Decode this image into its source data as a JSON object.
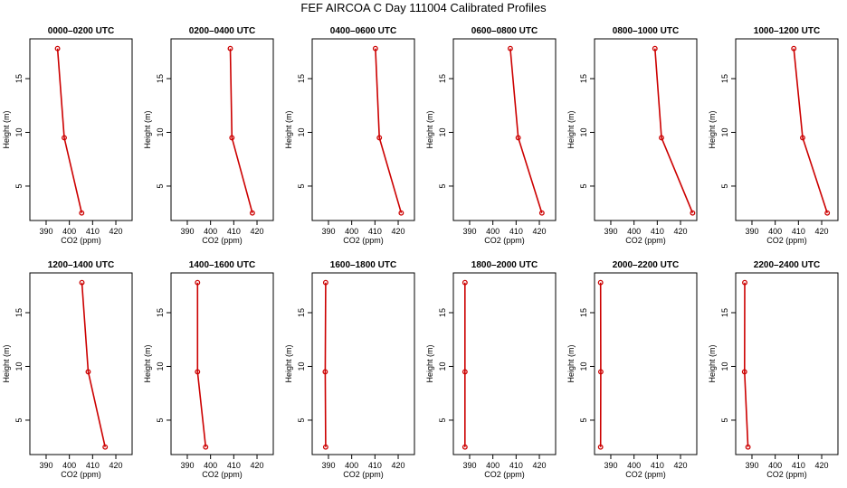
{
  "title": "FEF AIRCOA C  Day 111004  Calibrated Profiles",
  "colors": {
    "line": "#cc0000",
    "axis": "#000000",
    "background": "#ffffff"
  },
  "chart_data": [
    {
      "type": "line",
      "title": "0000–0200 UTC",
      "xlabel": "CO2 (ppm)",
      "ylabel": "Height (m)",
      "xlim": [
        383,
        427
      ],
      "ylim": [
        1.8,
        18.7
      ],
      "xticks": [
        390,
        400,
        410,
        420
      ],
      "xtick_labels": [
        "390",
        "400",
        "410",
        "420"
      ],
      "yticks": [
        5,
        10,
        15
      ],
      "ytick_labels": [
        "5",
        "10",
        "15"
      ],
      "x": [
        394.9,
        397.8,
        405.3
      ],
      "y": [
        17.8,
        9.5,
        2.5
      ]
    },
    {
      "type": "line",
      "title": "0200–0400 UTC",
      "xlabel": "CO2 (ppm)",
      "ylabel": "Height (m)",
      "xlim": [
        383,
        427
      ],
      "ylim": [
        1.8,
        18.7
      ],
      "xticks": [
        390,
        400,
        410,
        420
      ],
      "xtick_labels": [
        "390",
        "400",
        "410",
        "420"
      ],
      "yticks": [
        5,
        10,
        15
      ],
      "ytick_labels": [
        "5",
        "10",
        "15"
      ],
      "x": [
        408.5,
        409.2,
        418.0
      ],
      "y": [
        17.8,
        9.5,
        2.5
      ]
    },
    {
      "type": "line",
      "title": "0400–0600 UTC",
      "xlabel": "CO2 (ppm)",
      "ylabel": "Height (m)",
      "xlim": [
        383,
        427
      ],
      "ylim": [
        1.8,
        18.7
      ],
      "xticks": [
        390,
        400,
        410,
        420
      ],
      "xtick_labels": [
        "390",
        "400",
        "410",
        "420"
      ],
      "yticks": [
        5,
        10,
        15
      ],
      "ytick_labels": [
        "5",
        "10",
        "15"
      ],
      "x": [
        410.2,
        411.9,
        421.3
      ],
      "y": [
        17.8,
        9.5,
        2.5
      ]
    },
    {
      "type": "line",
      "title": "0600–0800 UTC",
      "xlabel": "CO2 (ppm)",
      "ylabel": "Height (m)",
      "xlim": [
        383,
        427
      ],
      "ylim": [
        1.8,
        18.7
      ],
      "xticks": [
        390,
        400,
        410,
        420
      ],
      "xtick_labels": [
        "390",
        "400",
        "410",
        "420"
      ],
      "yticks": [
        5,
        10,
        15
      ],
      "ytick_labels": [
        "5",
        "10",
        "15"
      ],
      "x": [
        407.5,
        410.9,
        421.1
      ],
      "y": [
        17.8,
        9.5,
        2.5
      ]
    },
    {
      "type": "line",
      "title": "0800–1000 UTC",
      "xlabel": "CO2 (ppm)",
      "ylabel": "Height (m)",
      "xlim": [
        383,
        427
      ],
      "ylim": [
        1.8,
        18.7
      ],
      "xticks": [
        390,
        400,
        410,
        420
      ],
      "xtick_labels": [
        "390",
        "400",
        "410",
        "420"
      ],
      "yticks": [
        5,
        10,
        15
      ],
      "ytick_labels": [
        "5",
        "10",
        "15"
      ],
      "x": [
        409.0,
        411.8,
        425.2
      ],
      "y": [
        17.8,
        9.5,
        2.5
      ]
    },
    {
      "type": "line",
      "title": "1000–1200 UTC",
      "xlabel": "CO2 (ppm)",
      "ylabel": "Height (m)",
      "xlim": [
        383,
        427
      ],
      "ylim": [
        1.8,
        18.7
      ],
      "xticks": [
        390,
        400,
        410,
        420
      ],
      "xtick_labels": [
        "390",
        "400",
        "410",
        "420"
      ],
      "yticks": [
        5,
        10,
        15
      ],
      "ytick_labels": [
        "5",
        "10",
        "15"
      ],
      "x": [
        408.0,
        411.8,
        422.4
      ],
      "y": [
        17.8,
        9.5,
        2.5
      ]
    },
    {
      "type": "line",
      "title": "1200–1400 UTC",
      "xlabel": "CO2 (ppm)",
      "ylabel": "Height (m)",
      "xlim": [
        383,
        427
      ],
      "ylim": [
        1.8,
        18.7
      ],
      "xticks": [
        390,
        400,
        410,
        420
      ],
      "xtick_labels": [
        "390",
        "400",
        "410",
        "420"
      ],
      "yticks": [
        5,
        10,
        15
      ],
      "ytick_labels": [
        "5",
        "10",
        "15"
      ],
      "x": [
        405.4,
        408.1,
        415.4
      ],
      "y": [
        17.8,
        9.5,
        2.5
      ]
    },
    {
      "type": "line",
      "title": "1400–1600 UTC",
      "xlabel": "CO2 (ppm)",
      "ylabel": "Height (m)",
      "xlim": [
        383,
        427
      ],
      "ylim": [
        1.8,
        18.7
      ],
      "xticks": [
        390,
        400,
        410,
        420
      ],
      "xtick_labels": [
        "390",
        "400",
        "410",
        "420"
      ],
      "yticks": [
        5,
        10,
        15
      ],
      "ytick_labels": [
        "5",
        "10",
        "15"
      ],
      "x": [
        394.4,
        394.4,
        397.9
      ],
      "y": [
        17.8,
        9.5,
        2.5
      ]
    },
    {
      "type": "line",
      "title": "1600–1800 UTC",
      "xlabel": "CO2 (ppm)",
      "ylabel": "Height (m)",
      "xlim": [
        383,
        427
      ],
      "ylim": [
        1.8,
        18.7
      ],
      "xticks": [
        390,
        400,
        410,
        420
      ],
      "xtick_labels": [
        "390",
        "400",
        "410",
        "420"
      ],
      "yticks": [
        5,
        10,
        15
      ],
      "ytick_labels": [
        "5",
        "10",
        "15"
      ],
      "x": [
        388.8,
        388.6,
        388.8
      ],
      "y": [
        17.8,
        9.5,
        2.5
      ]
    },
    {
      "type": "line",
      "title": "1800–2000 UTC",
      "xlabel": "CO2 (ppm)",
      "ylabel": "Height (m)",
      "xlim": [
        383,
        427
      ],
      "ylim": [
        1.8,
        18.7
      ],
      "xticks": [
        390,
        400,
        410,
        420
      ],
      "xtick_labels": [
        "390",
        "400",
        "410",
        "420"
      ],
      "yticks": [
        5,
        10,
        15
      ],
      "ytick_labels": [
        "5",
        "10",
        "15"
      ],
      "x": [
        388.0,
        388.0,
        388.0
      ],
      "y": [
        17.8,
        9.5,
        2.5
      ]
    },
    {
      "type": "line",
      "title": "2000–2200 UTC",
      "xlabel": "CO2 (ppm)",
      "ylabel": "Height (m)",
      "xlim": [
        383,
        427
      ],
      "ylim": [
        1.8,
        18.7
      ],
      "xticks": [
        390,
        400,
        410,
        420
      ],
      "xtick_labels": [
        "390",
        "400",
        "410",
        "420"
      ],
      "yticks": [
        5,
        10,
        15
      ],
      "ytick_labels": [
        "5",
        "10",
        "15"
      ],
      "x": [
        385.6,
        385.7,
        385.6
      ],
      "y": [
        17.8,
        9.5,
        2.5
      ]
    },
    {
      "type": "line",
      "title": "2200–2400 UTC",
      "xlabel": "CO2 (ppm)",
      "ylabel": "Height (m)",
      "xlim": [
        383,
        427
      ],
      "ylim": [
        1.8,
        18.7
      ],
      "xticks": [
        390,
        400,
        410,
        420
      ],
      "xtick_labels": [
        "390",
        "400",
        "410",
        "420"
      ],
      "yticks": [
        5,
        10,
        15
      ],
      "ytick_labels": [
        "5",
        "10",
        "15"
      ],
      "x": [
        386.9,
        386.8,
        388.3
      ],
      "y": [
        17.8,
        9.5,
        2.5
      ]
    }
  ]
}
